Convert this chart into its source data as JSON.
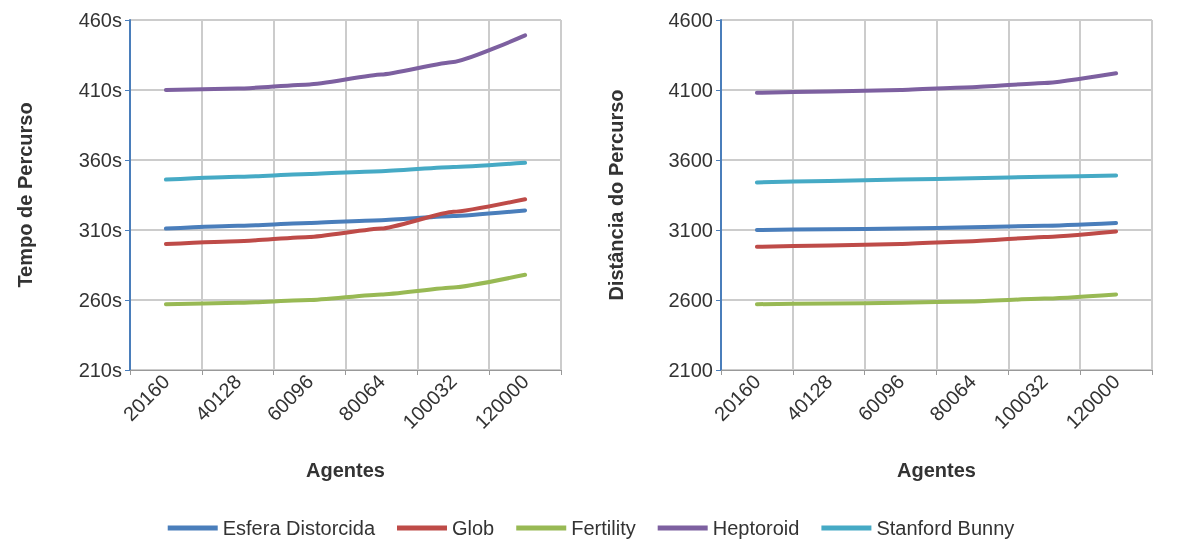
{
  "chart_data": [
    {
      "type": "line",
      "xlabel": "Agentes",
      "ylabel": "Tempo de Percurso",
      "categories": [
        "20160",
        "40128",
        "60096",
        "80064",
        "100032",
        "120000"
      ],
      "series": [
        {
          "name": "Esfera Distorcida",
          "color": "#4a7ebb",
          "values": [
            311,
            313,
            315,
            317,
            320,
            324
          ]
        },
        {
          "name": "Glob",
          "color": "#be4b48",
          "values": [
            300,
            302,
            305,
            311,
            323,
            332
          ]
        },
        {
          "name": "Fertility",
          "color": "#98b954",
          "values": [
            257,
            258,
            260,
            264,
            269,
            278
          ]
        },
        {
          "name": "Heptoroid",
          "color": "#7d60a0",
          "values": [
            410,
            411,
            414,
            421,
            430,
            449
          ]
        },
        {
          "name": "Stanford Bunny",
          "color": "#46aac5",
          "values": [
            346,
            348,
            350,
            352,
            355,
            358
          ]
        }
      ],
      "ylim": [
        210,
        460
      ],
      "yticks": [
        {
          "value": 210,
          "label": "210s"
        },
        {
          "value": 260,
          "label": "260s"
        },
        {
          "value": 310,
          "label": "310s"
        },
        {
          "value": 360,
          "label": "360s"
        },
        {
          "value": 410,
          "label": "410s"
        },
        {
          "value": 460,
          "label": "460s"
        }
      ],
      "grid": true,
      "legend": "bottom",
      "marker": "none"
    },
    {
      "type": "line",
      "xlabel": "Agentes",
      "ylabel": "Distância do Percurso",
      "categories": [
        "20160",
        "40128",
        "60096",
        "80064",
        "100032",
        "120000"
      ],
      "series": [
        {
          "name": "Esfera Distorcida",
          "color": "#4a7ebb",
          "values": [
            3100,
            3105,
            3110,
            3120,
            3130,
            3150
          ]
        },
        {
          "name": "Glob",
          "color": "#be4b48",
          "values": [
            2980,
            2990,
            3000,
            3020,
            3050,
            3090
          ]
        },
        {
          "name": "Fertility",
          "color": "#98b954",
          "values": [
            2570,
            2575,
            2580,
            2590,
            2610,
            2640
          ]
        },
        {
          "name": "Heptoroid",
          "color": "#7d60a0",
          "values": [
            4080,
            4090,
            4100,
            4120,
            4150,
            4220
          ]
        },
        {
          "name": "Stanford Bunny",
          "color": "#46aac5",
          "values": [
            3440,
            3450,
            3460,
            3470,
            3480,
            3490
          ]
        }
      ],
      "ylim": [
        2100,
        4600
      ],
      "yticks": [
        2100,
        2600,
        3100,
        3600,
        4100,
        4600
      ],
      "grid": true,
      "marker": "none"
    }
  ]
}
